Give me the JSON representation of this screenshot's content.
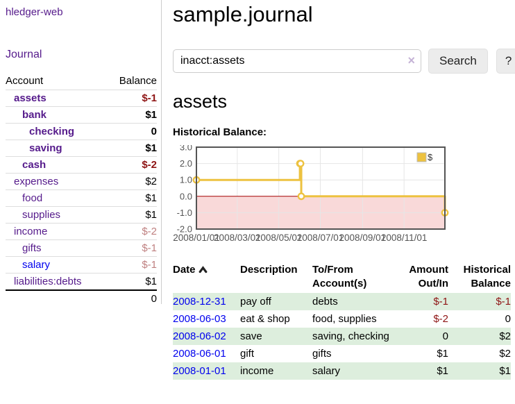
{
  "app": {
    "brand": "hledger-web",
    "nav_journal": "Journal"
  },
  "sidebar": {
    "headers": {
      "account": "Account",
      "balance": "Balance"
    },
    "accounts": [
      {
        "name": "assets",
        "depth": 1,
        "emph": true,
        "balance": "$-1",
        "balance_style": "neg-strong",
        "link": "visited"
      },
      {
        "name": "bank",
        "depth": 2,
        "emph": true,
        "balance": "$1",
        "balance_style": "pos",
        "link": "visited"
      },
      {
        "name": "checking",
        "depth": 3,
        "emph": true,
        "balance": "0",
        "balance_style": "pos",
        "link": "visited"
      },
      {
        "name": "saving",
        "depth": 3,
        "emph": true,
        "balance": "$1",
        "balance_style": "pos",
        "link": "visited"
      },
      {
        "name": "cash",
        "depth": 2,
        "emph": true,
        "balance": "$-2",
        "balance_style": "neg-strong",
        "link": "visited"
      },
      {
        "name": "expenses",
        "depth": 1,
        "emph": false,
        "balance": "$2",
        "balance_style": "pos",
        "link": "visited"
      },
      {
        "name": "food",
        "depth": 2,
        "emph": false,
        "balance": "$1",
        "balance_style": "pos",
        "link": "visited"
      },
      {
        "name": "supplies",
        "depth": 2,
        "emph": false,
        "balance": "$1",
        "balance_style": "pos",
        "link": "visited"
      },
      {
        "name": "income",
        "depth": 1,
        "emph": false,
        "balance": "$-2",
        "balance_style": "neg-soft",
        "link": "visited"
      },
      {
        "name": "gifts",
        "depth": 2,
        "emph": false,
        "balance": "$-1",
        "balance_style": "neg-soft",
        "link": "visited"
      },
      {
        "name": "salary",
        "depth": 2,
        "emph": false,
        "balance": "$-1",
        "balance_style": "neg-soft",
        "link": "unvisited"
      },
      {
        "name": "liabilities:debts",
        "depth": 1,
        "emph": false,
        "balance": "$1",
        "balance_style": "pos",
        "link": "visited"
      }
    ],
    "total": "0"
  },
  "header": {
    "title": "sample.journal"
  },
  "search": {
    "query": "inacct:assets",
    "clear_icon": "×",
    "button": "Search",
    "help_button": "?"
  },
  "account_page": {
    "heading": "assets",
    "chart_label": "Historical Balance:"
  },
  "chart_data": {
    "type": "line",
    "step": true,
    "title": "Historical Balance:",
    "series": [
      {
        "name": "$",
        "color": "#edc240",
        "points": [
          [
            "2008-01-01",
            1
          ],
          [
            "2008-06-01",
            2
          ],
          [
            "2008-06-02",
            2
          ],
          [
            "2008-06-03",
            0
          ],
          [
            "2008-12-31",
            -1
          ]
        ]
      }
    ],
    "x_range": [
      "2008-01-01",
      "2008-12-31"
    ],
    "x_ticks": [
      {
        "date": "2008-01-01",
        "label": "2008/01/01"
      },
      {
        "date": "2008-03-01",
        "label": "2008/03/01"
      },
      {
        "date": "2008-05-01",
        "label": "2008/05/01"
      },
      {
        "date": "2008-07-01",
        "label": "2008/07/01"
      },
      {
        "date": "2008-09-01",
        "label": "2008/09/01"
      },
      {
        "date": "2008-11-01",
        "label": "2008/11/01"
      }
    ],
    "y_ticks": [
      3.0,
      2.0,
      1.0,
      0.0,
      -1.0,
      -2.0
    ],
    "ylim": [
      -2,
      3
    ],
    "grid": true,
    "legend_position": "top-right",
    "colors": {
      "grid": "#e6e6e6",
      "border": "#545454",
      "axis_text": "#545454",
      "negative_region": "#f9d9d9",
      "zero_line": "#a40000",
      "marker_fill": "#ffffff",
      "legend_box_border": "#bbbbbb"
    }
  },
  "register": {
    "headers": {
      "date": "Date",
      "description": "Description",
      "tofrom": "To/From Account(s)",
      "amount": "Amount Out/In",
      "balance": "Historical Balance"
    },
    "rows": [
      {
        "date": "2008-12-31",
        "description": "pay off",
        "accounts": "debts",
        "amount": "$-1",
        "balance": "$-1",
        "amount_neg": true,
        "balance_neg": true,
        "shade": true
      },
      {
        "date": "2008-06-03",
        "description": "eat & shop",
        "accounts": "food, supplies",
        "amount": "$-2",
        "balance": "0",
        "amount_neg": true,
        "balance_neg": false,
        "shade": false
      },
      {
        "date": "2008-06-02",
        "description": "save",
        "accounts": "saving, checking",
        "amount": "0",
        "balance": "$2",
        "amount_neg": false,
        "balance_neg": false,
        "shade": true
      },
      {
        "date": "2008-06-01",
        "description": "gift",
        "accounts": "gifts",
        "amount": "$1",
        "balance": "$2",
        "amount_neg": false,
        "balance_neg": false,
        "shade": false
      },
      {
        "date": "2008-01-01",
        "description": "income",
        "accounts": "salary",
        "amount": "$1",
        "balance": "$1",
        "amount_neg": false,
        "balance_neg": false,
        "shade": true
      }
    ]
  }
}
